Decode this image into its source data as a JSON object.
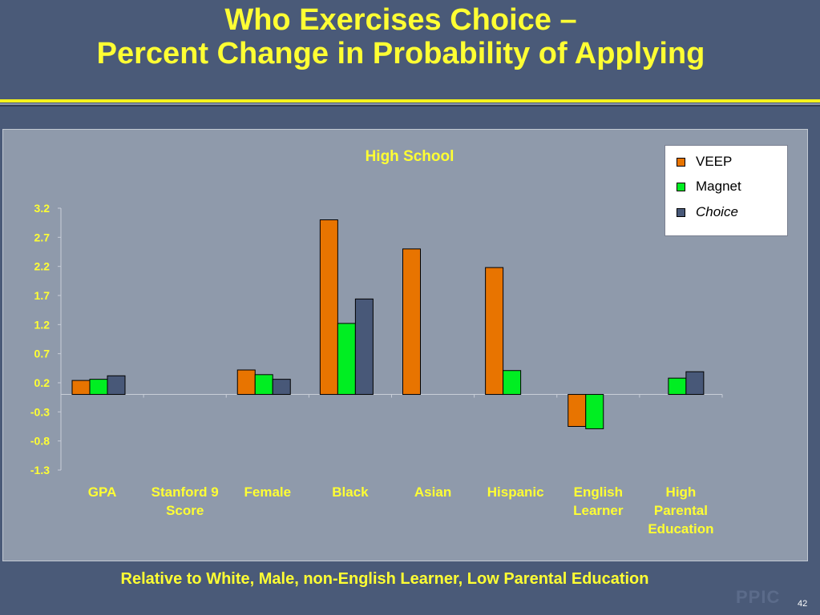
{
  "slide": {
    "title_line1": "Who Exercises Choice –",
    "title_line2": "Percent Change in Probability of Applying",
    "footer": "Relative to White, Male, non-English Learner, Low Parental Education",
    "logo": "PPIC",
    "page_number": "42"
  },
  "colors": {
    "background": "#4a5a78",
    "title": "#ffff33",
    "plot_area": "#8f9aab"
  },
  "chart_data": {
    "type": "bar",
    "title": "High School",
    "xlabel": "",
    "ylabel": "",
    "ylim": [
      -1.3,
      3.2
    ],
    "yticks": [
      "3.2",
      "2.7",
      "2.2",
      "1.7",
      "1.2",
      "0.7",
      "0.2",
      "-0.3",
      "-0.8",
      "-1.3"
    ],
    "baseline": 0,
    "grid": false,
    "legend_position": "top-right",
    "categories": [
      [
        "GPA"
      ],
      [
        "Stanford 9",
        "Score"
      ],
      [
        "Female"
      ],
      [
        "Black"
      ],
      [
        "Asian"
      ],
      [
        "Hispanic"
      ],
      [
        "English",
        "Learner"
      ],
      [
        "High",
        "Parental",
        "Education"
      ]
    ],
    "series": [
      {
        "name": "VEEP",
        "italic": false,
        "color": "#e87400",
        "values": [
          0.24,
          null,
          0.42,
          3.0,
          2.5,
          2.18,
          -0.55,
          null
        ]
      },
      {
        "name": "Magnet",
        "italic": false,
        "color": "#00ee22",
        "values": [
          0.26,
          null,
          0.34,
          1.22,
          null,
          0.41,
          -0.59,
          0.28
        ]
      },
      {
        "name": "Choice",
        "italic": true,
        "color": "#485878",
        "values": [
          0.32,
          null,
          0.26,
          1.64,
          null,
          null,
          null,
          0.39
        ]
      }
    ]
  }
}
